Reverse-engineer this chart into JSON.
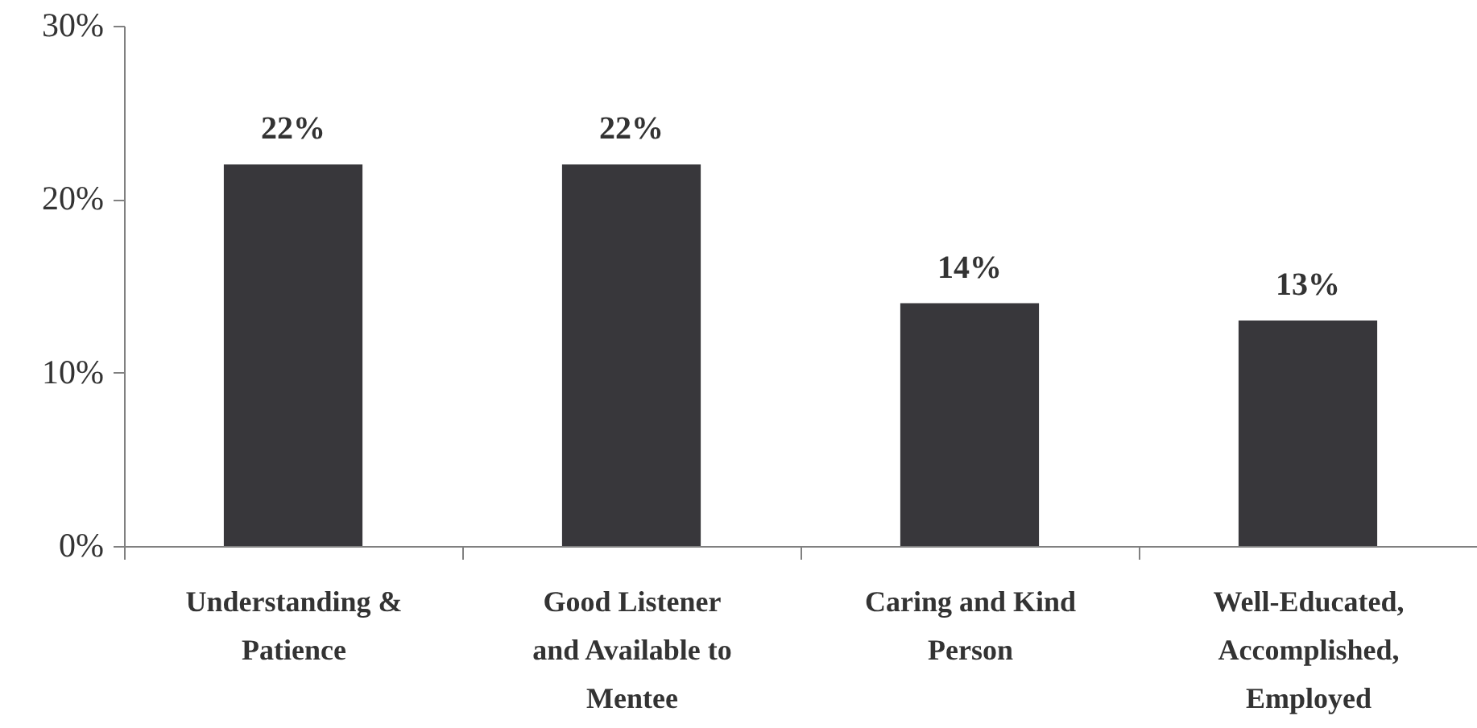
{
  "chart_data": {
    "type": "bar",
    "categories": [
      "Understanding & Patience",
      "Good Listener and Available to Mentee",
      "Caring and Kind Person",
      "Well-Educated, Accomplished, Employed"
    ],
    "values": [
      22,
      22,
      14,
      13
    ],
    "value_labels": [
      "22%",
      "22%",
      "14%",
      "13%"
    ],
    "color": "#38373b",
    "ylim": [
      0,
      30
    ],
    "yticks": [
      {
        "value": 0,
        "label": "0%"
      },
      {
        "value": 10,
        "label": "10%"
      },
      {
        "value": 20,
        "label": "20%"
      },
      {
        "value": 30,
        "label": "30%"
      }
    ]
  }
}
